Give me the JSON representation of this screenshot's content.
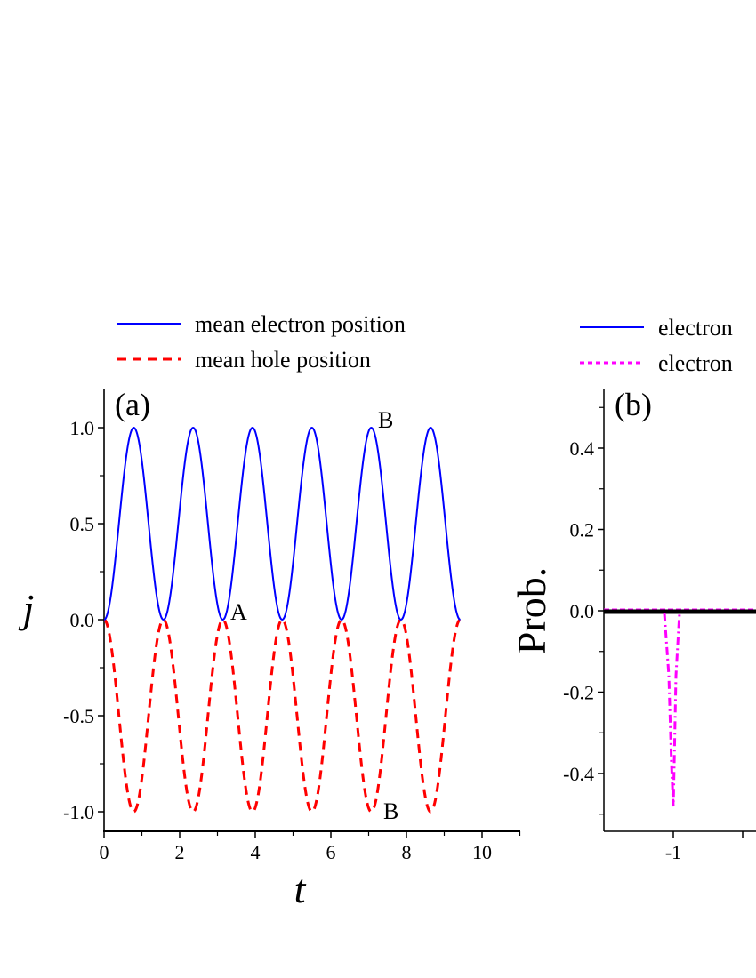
{
  "chart_data": [
    {
      "panel": "(a)",
      "type": "line",
      "title": "",
      "xlabel": "t",
      "ylabel": "j",
      "xlim": [
        0,
        11
      ],
      "ylim": [
        -1.1,
        1.2
      ],
      "xticks": [
        0,
        2,
        4,
        6,
        8,
        10
      ],
      "xtick_labels": [
        "0",
        "2",
        "4",
        "6",
        "8",
        "10"
      ],
      "yticks": [
        -1.0,
        -0.5,
        0.0,
        0.5,
        1.0
      ],
      "ytick_labels": [
        "-1.0",
        "-0.5",
        "0.0",
        "0.5",
        "1.0"
      ],
      "x_minor_step": 1,
      "y_minor_step": 0.25,
      "grid": false,
      "legend_position": "above-plot",
      "series": [
        {
          "name": "mean electron position",
          "color": "#0000ff",
          "style": "solid",
          "formula": "sin^2(2t)",
          "t_range": [
            0,
            9.4248
          ],
          "x": [
            0,
            0.3927,
            0.7854,
            1.1781,
            1.5708,
            1.9635,
            2.3562,
            2.7489,
            3.1416,
            3.5343,
            3.927,
            4.3197,
            4.7124,
            5.1051,
            5.4978,
            5.8905,
            6.2832,
            6.6759,
            7.0686,
            7.4613,
            7.854,
            8.2467,
            8.6394,
            9.0321,
            9.4248
          ],
          "values": [
            0,
            0.5,
            1.0,
            0.5,
            0,
            0.5,
            1.0,
            0.5,
            0,
            0.5,
            1.0,
            0.5,
            0,
            0.5,
            1.0,
            0.5,
            0,
            0.5,
            1.0,
            0.5,
            0,
            0.5,
            1.0,
            0.5,
            0
          ]
        },
        {
          "name": "mean hole position",
          "color": "#ff0000",
          "style": "dashed",
          "formula": "-sin^2(2t)",
          "t_range": [
            0,
            9.4248
          ],
          "x": [
            0,
            0.3927,
            0.7854,
            1.1781,
            1.5708,
            1.9635,
            2.3562,
            2.7489,
            3.1416,
            3.5343,
            3.927,
            4.3197,
            4.7124,
            5.1051,
            5.4978,
            5.8905,
            6.2832,
            6.6759,
            7.0686,
            7.4613,
            7.854,
            8.2467,
            8.6394,
            9.0321,
            9.4248
          ],
          "values": [
            0,
            -0.5,
            -1.0,
            -0.5,
            0,
            -0.5,
            -1.0,
            -0.5,
            0,
            -0.5,
            -1.0,
            -0.5,
            0,
            -0.5,
            -1.0,
            -0.5,
            0,
            -0.5,
            -1.0,
            -0.5,
            0,
            -0.5,
            -1.0,
            -0.5,
            0
          ]
        }
      ],
      "annotations": [
        {
          "text": "(a)",
          "x": 0.3,
          "y": 1.1
        },
        {
          "text": "A",
          "x": 3.3,
          "y": 0.03
        },
        {
          "text": "B",
          "x": 7.2,
          "y": 1.04
        },
        {
          "text": "B",
          "x": 7.25,
          "y": -1.06
        }
      ]
    },
    {
      "panel": "(b)",
      "type": "line",
      "title": "",
      "xlabel": "",
      "ylabel": "Prob.",
      "xlim": [
        -1.3,
        null
      ],
      "ylim": [
        -0.54,
        0.55
      ],
      "xticks": [
        -1
      ],
      "xtick_labels": [
        "-1"
      ],
      "yticks": [
        -0.4,
        -0.2,
        0.0,
        0.2,
        0.4
      ],
      "ytick_labels": [
        "-0.4",
        "-0.2",
        "0.0",
        "0.2",
        "0.4"
      ],
      "y_minor_step": 0.1,
      "grid": false,
      "legend_position": "above-plot",
      "series": [
        {
          "name": "electron",
          "color": "#0000ff",
          "style": "solid",
          "x": [
            -1.3,
            -1.0,
            -0.6
          ],
          "values": [
            0,
            0,
            0
          ]
        },
        {
          "name": "electron",
          "color": "#ff00ff",
          "style": "dotted",
          "x": [
            -1.3,
            -1.0,
            -0.6
          ],
          "values": [
            0,
            0,
            0
          ]
        },
        {
          "name": "",
          "color": "#ff00ff",
          "style": "dash-dot",
          "x": [
            -1.3,
            -1.07,
            -1.05,
            -1.02,
            -1.0,
            -0.98,
            -0.96,
            -0.93,
            -0.6
          ],
          "values": [
            0,
            0,
            -0.1,
            -0.3,
            -0.49,
            -0.3,
            -0.1,
            0,
            0
          ]
        },
        {
          "name": "",
          "color": "#000000",
          "style": "thick-solid",
          "x": [
            -1.3,
            -0.6
          ],
          "values": [
            0,
            0
          ]
        }
      ],
      "annotations": [
        {
          "text": "(b)",
          "x": -1.25,
          "y": 0.52
        }
      ]
    }
  ],
  "legend_a": {
    "items": [
      {
        "label": "mean electron position",
        "color": "#0000ff",
        "style": "solid"
      },
      {
        "label": "mean hole position",
        "color": "#ff0000",
        "style": "dashed"
      }
    ]
  },
  "legend_b": {
    "items": [
      {
        "label": "electron",
        "color": "#0000ff",
        "style": "solid"
      },
      {
        "label": "electron",
        "color": "#ff00ff",
        "style": "dotted"
      }
    ]
  },
  "panel_a": {
    "label": "(a)",
    "xlabel": "t",
    "ylabel": "j",
    "annot_A": "A",
    "annot_B_top": "B",
    "annot_B_bottom": "B"
  },
  "panel_b": {
    "label": "(b)",
    "ylabel": "Prob."
  }
}
